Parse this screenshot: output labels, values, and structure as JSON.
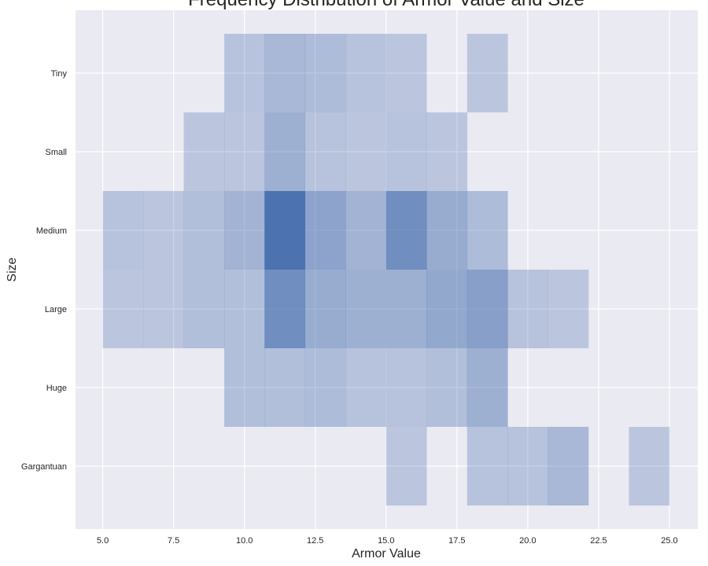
{
  "chart_data": {
    "type": "heatmap",
    "title": "Frequency Distribution of Armor Value and Size",
    "xlabel": "Armor Value",
    "ylabel": "Size",
    "xlim": [
      4.04,
      26.0
    ],
    "x_ticks": [
      5.0,
      7.5,
      10.0,
      12.5,
      15.0,
      17.5,
      20.0,
      22.5,
      25.0
    ],
    "x_tick_labels": [
      "5.0",
      "7.5",
      "10.0",
      "12.5",
      "15.0",
      "17.5",
      "20.0",
      "22.5",
      "25.0"
    ],
    "categories": [
      "Tiny",
      "Small",
      "Medium",
      "Large",
      "Huge",
      "Gargantuan"
    ],
    "bin_edges": [
      5.0,
      6.43,
      7.86,
      9.29,
      10.71,
      12.14,
      13.57,
      15.0,
      16.43,
      17.86,
      19.29,
      20.71,
      22.14,
      23.57,
      25.0
    ],
    "counts": [
      [
        0,
        0,
        0,
        3,
        6,
        5,
        3,
        2,
        0,
        2,
        0,
        0,
        0,
        0
      ],
      [
        0,
        0,
        2,
        2,
        8,
        3,
        2,
        3,
        2,
        0,
        0,
        0,
        0,
        0
      ],
      [
        3,
        2,
        4,
        7,
        22,
        11,
        7,
        16,
        9,
        5,
        0,
        0,
        0,
        0
      ],
      [
        2,
        2,
        4,
        4,
        16,
        9,
        8,
        8,
        10,
        12,
        3,
        2,
        0,
        0
      ],
      [
        0,
        0,
        0,
        4,
        4,
        5,
        3,
        3,
        4,
        8,
        0,
        0,
        0,
        0
      ],
      [
        0,
        0,
        0,
        0,
        0,
        0,
        0,
        2,
        0,
        3,
        3,
        6,
        0,
        2
      ]
    ],
    "colors": {
      "background": "#eaeaf2",
      "grid": "#ffffff",
      "cell": "#4c72b0"
    },
    "grid": true
  }
}
